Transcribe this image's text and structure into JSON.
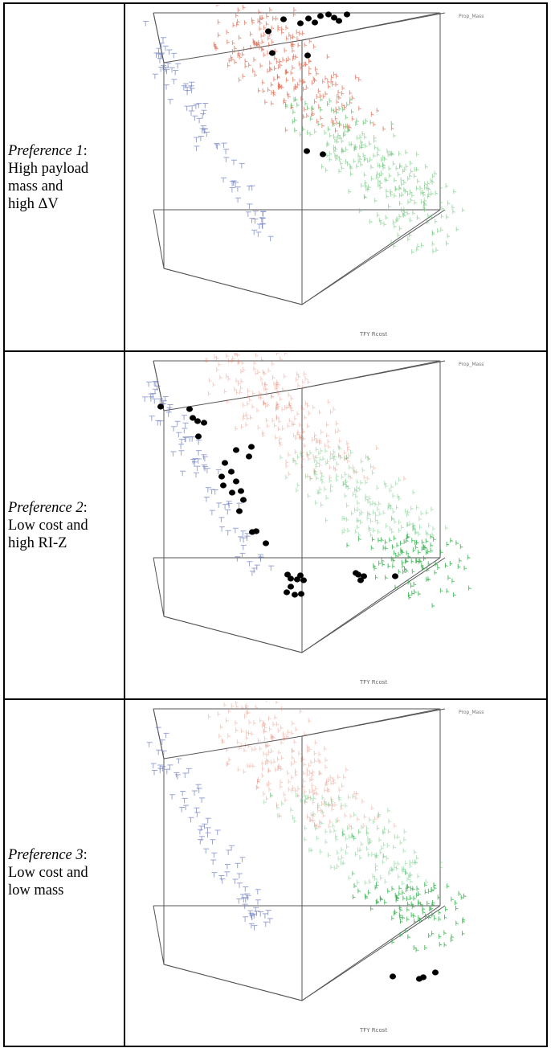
{
  "panels": [
    {
      "pref_label": "Preference 1",
      "desc_lines": [
        "High payload",
        "mass and",
        "high ΔV"
      ],
      "axis_z_label": "Prop_Mass",
      "axis_x_label": "TFY Rcost",
      "colors": {
        "high": "#e0705a",
        "mid": "#5cc06c",
        "low": "#6f7fc0",
        "highlight": "#000000"
      },
      "highlight_region": "top"
    },
    {
      "pref_label": "Preference 2",
      "desc_lines": [
        "Low cost and",
        "high RI-Z"
      ],
      "axis_z_label": "Prop_Mass",
      "axis_x_label": "TFY Rcost",
      "colors": {
        "high": "#e0705a",
        "mid": "#2fb04a",
        "low": "#6f7fc0",
        "highlight": "#000000"
      },
      "highlight_region": "left-edge"
    },
    {
      "pref_label": "Preference 3",
      "desc_lines": [
        "Low cost and",
        "low mass"
      ],
      "axis_z_label": "Prop_Mass",
      "axis_x_label": "TFY Rcost",
      "colors": {
        "high": "#e0705a",
        "mid": "#2fb04a",
        "low": "#6f7fc0",
        "highlight": "#000000"
      },
      "highlight_region": "bottom-corner"
    }
  ]
}
